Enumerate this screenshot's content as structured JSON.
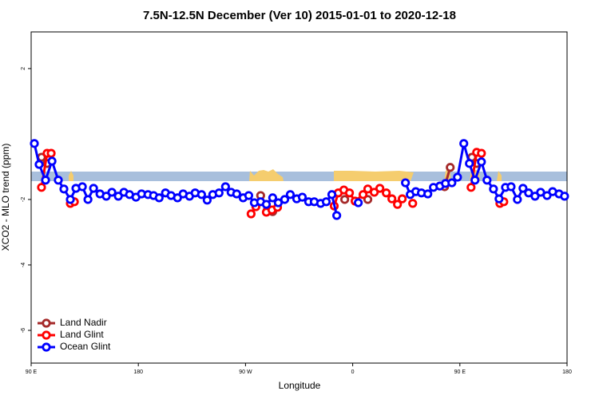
{
  "chart_data": {
    "type": "line",
    "title": "7.5N-12.5N December (Ver 10)   2015-01-01 to 2020-12-18",
    "x_label": "Longitude",
    "y_label": "XCO2 - MLO trend (ppm)",
    "xlim": [
      90,
      540
    ],
    "xticks": [
      {
        "value": 90,
        "label": "90 E"
      },
      180,
      {
        "value": 270,
        "label": "90 W"
      },
      {
        "value": 360,
        "label": "0"
      },
      {
        "value": 450,
        "label": "90 E"
      },
      {
        "value": 540,
        "label": "180"
      }
    ],
    "ylim": [
      -7,
      3.12
    ],
    "yticks": [
      -6,
      -4,
      -2,
      2
    ],
    "legend": "bottomleft",
    "series": [
      {
        "name": "Land Nadir",
        "color": "#a52a2a",
        "x": [
          98.7,
          103.4,
          null,
          282.7,
          288.1,
          292.8,
          null,
          353.3,
          null,
          372.7,
          null,
          437.2,
          441.9,
          null,
          460.1,
          464.1
        ],
        "values": [
          -0.71,
          -0.9,
          null,
          -1.88,
          -2.34,
          -2.37,
          null,
          -2.0,
          null,
          -2.0,
          null,
          -1.61,
          -1.02,
          null,
          -0.71,
          -0.9
        ]
      },
      {
        "name": "Land Glint",
        "color": "#ff0000",
        "x": [
          98.7,
          103.4,
          106.8,
          null,
          122.9,
          126.3,
          null,
          274.7,
          278.7,
          null,
          287.5,
          292.2,
          296.9,
          null,
          344.5,
          347.9,
          352.6,
          357.3,
          362.0,
          368.7,
          372.7,
          378.1,
          382.8,
          388.2,
          392.9,
          397.6,
          401.6,
          null,
          410.4,
          null,
          459.4,
          464.1,
          468.1,
          null,
          483.6,
          486.9
        ],
        "values": [
          -1.63,
          -0.59,
          -0.59,
          null,
          -2.12,
          -2.07,
          null,
          -2.44,
          -2.22,
          null,
          -2.39,
          -2.32,
          -2.24,
          null,
          -2.2,
          -1.8,
          -1.71,
          -1.8,
          -2.05,
          -1.85,
          -1.68,
          -1.78,
          -1.66,
          -1.8,
          -1.98,
          -2.15,
          -1.98,
          null,
          -2.12,
          null,
          -1.63,
          -0.56,
          -0.59,
          null,
          -2.12,
          -2.07
        ]
      },
      {
        "name": "Ocean Glint",
        "color": "#0000ff",
        "x": [
          92.7,
          96.7,
          102.1,
          107.5,
          112.8,
          117.5,
          122.9,
          127.6,
          133.0,
          137.7,
          142.4,
          147.8,
          153.1,
          157.8,
          163.2,
          167.9,
          172.6,
          178.0,
          182.7,
          188.1,
          192.8,
          197.5,
          202.8,
          207.5,
          212.9,
          217.6,
          223.0,
          227.7,
          233.1,
          237.8,
          242.5,
          247.8,
          253.2,
          257.9,
          262.6,
          268.0,
          272.7,
          277.4,
          282.7,
          287.5,
          292.8,
          297.5,
          302.9,
          307.6,
          313.0,
          317.7,
          323.0,
          327.7,
          333.1,
          337.8,
          342.5,
          346.6,
          null,
          364.7,
          null,
          404.3,
          408.3,
          413.0,
          417.7,
          423.1,
          427.8,
          433.2,
          437.9,
          443.3,
          448.0,
          453.3,
          458.0,
          462.7,
          468.1,
          472.8,
          478.2,
          482.9,
          488.3,
          493.0,
          498.3,
          503.0,
          507.7,
          513.1,
          517.8,
          523.2,
          527.9,
          533.3,
          537.9
        ],
        "values": [
          -0.29,
          -0.93,
          -1.41,
          -0.83,
          -1.41,
          -1.68,
          -2.0,
          -1.66,
          -1.61,
          -2.0,
          -1.66,
          -1.83,
          -1.9,
          -1.78,
          -1.9,
          -1.78,
          -1.85,
          -1.93,
          -1.83,
          -1.85,
          -1.88,
          -1.95,
          -1.8,
          -1.88,
          -1.95,
          -1.83,
          -1.9,
          -1.8,
          -1.85,
          -2.02,
          -1.85,
          -1.8,
          -1.61,
          -1.78,
          -1.83,
          -1.95,
          -1.88,
          -2.1,
          -2.07,
          -2.15,
          -1.95,
          -2.1,
          -2.0,
          -1.85,
          -1.98,
          -1.93,
          -2.07,
          -2.07,
          -2.12,
          -2.07,
          -1.85,
          -2.49,
          null,
          -2.1,
          null,
          -1.49,
          -1.85,
          -1.76,
          -1.8,
          -1.83,
          -1.63,
          -1.59,
          -1.51,
          -1.49,
          -1.32,
          -0.29,
          -0.9,
          -1.41,
          -0.85,
          -1.41,
          -1.68,
          -1.98,
          -1.63,
          -1.61,
          -2.0,
          -1.66,
          -1.8,
          -1.9,
          -1.78,
          -1.88,
          -1.76,
          -1.83,
          -1.9
        ]
      }
    ]
  }
}
